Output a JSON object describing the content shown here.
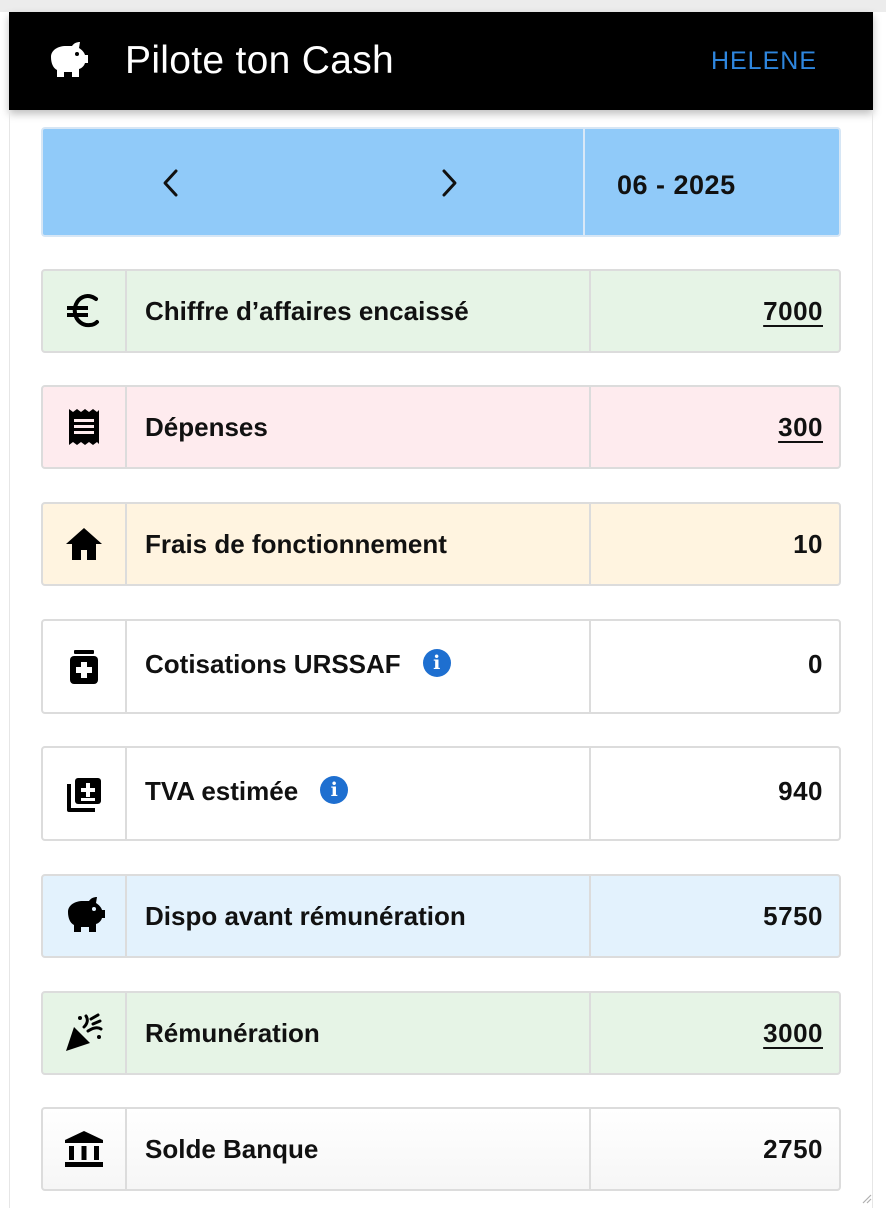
{
  "appbar": {
    "title": "Pilote ton Cash",
    "user": "HELENE",
    "logo_icon": "piggy-bank-icon"
  },
  "month_nav": {
    "period": "06 - 2025",
    "prev_icon": "chevron-left-icon",
    "next_icon": "chevron-right-icon"
  },
  "rows": [
    {
      "label": "Chiffre d’affaires encaissé",
      "value": "7000",
      "icon": "euro-icon",
      "color": "#e6f4e6"
    },
    {
      "label": "Dépenses",
      "value": "300",
      "icon": "receipt-icon",
      "color": "#feebee"
    },
    {
      "label": "Frais de fonctionnement",
      "value": "10",
      "icon": "home-icon",
      "color": "#fff4e0"
    },
    {
      "label": "Cotisations URSSAF",
      "value": "0",
      "icon": "medical-bag-icon",
      "color": "#ffffff"
    },
    {
      "label": "TVA estimée",
      "value": "940",
      "icon": "library-add-icon",
      "color": "#ffffff"
    },
    {
      "label": "Dispo avant rémunération",
      "value": "5750",
      "icon": "piggy-bank-icon",
      "color": "#e3f2fd"
    },
    {
      "label": "Rémunération",
      "value": "3000",
      "icon": "celebration-icon",
      "color": "#e6f4e6"
    },
    {
      "label": "Solde Banque",
      "value": "2750",
      "icon": "bank-icon",
      "color": "#f6f6f6"
    }
  ]
}
